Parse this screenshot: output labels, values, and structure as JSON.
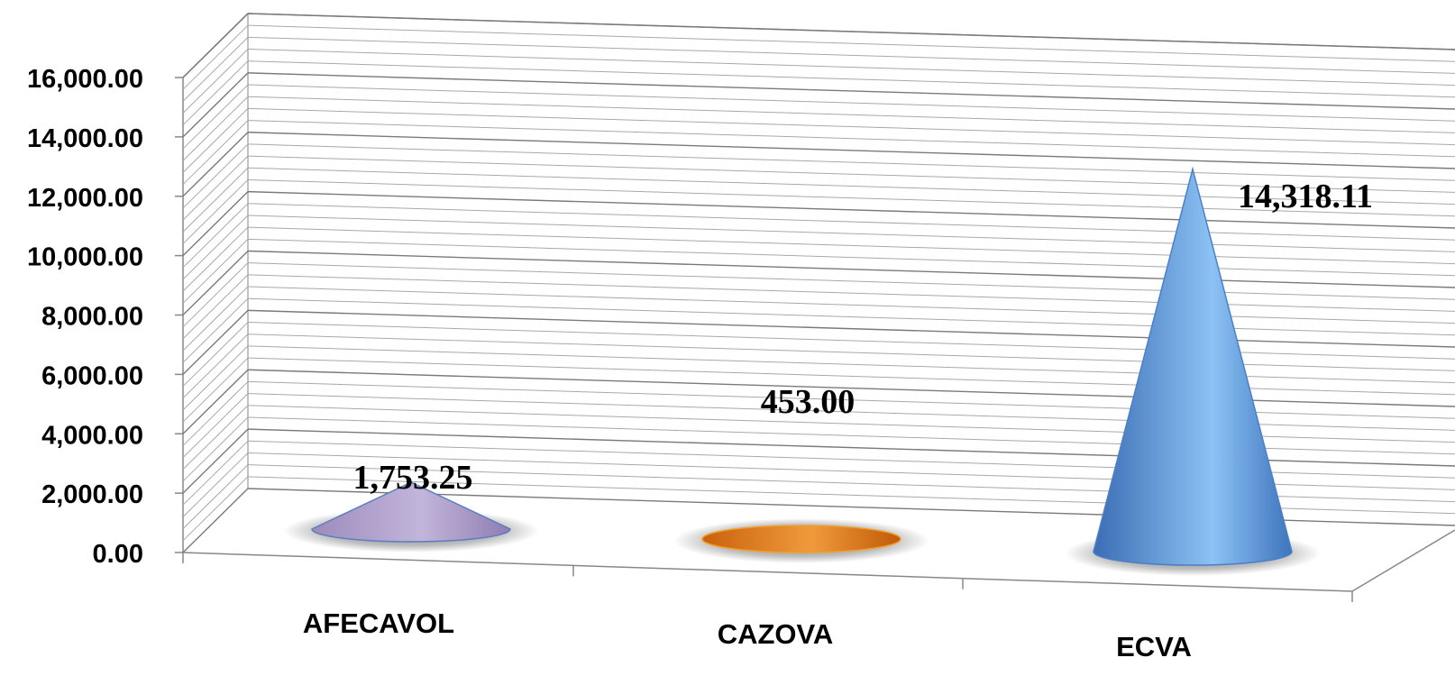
{
  "chart_data": {
    "type": "bar",
    "shape": "cone-3d",
    "categories": [
      "AFECAVOL",
      "CAZOVA",
      "ECVA"
    ],
    "values": [
      1753.25,
      453.0,
      14318.11
    ],
    "data_labels": [
      "1,753.25",
      "453.00",
      "14,318.11"
    ],
    "ylim": [
      0,
      16000
    ],
    "yticks": [
      0,
      2000,
      4000,
      6000,
      8000,
      10000,
      12000,
      14000,
      16000
    ],
    "ytick_labels": [
      "0.00",
      "2,000.00",
      "4,000.00",
      "6,000.00",
      "8,000.00",
      "10,000.00",
      "12,000.00",
      "14,000.00",
      "16,000.00"
    ],
    "grid": true,
    "legend": "none",
    "colors": [
      "#a898c4",
      "#e07a20",
      "#5b8fd0"
    ]
  }
}
